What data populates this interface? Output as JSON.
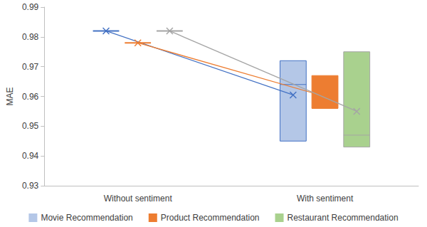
{
  "chart_data": {
    "type": "boxplot",
    "y_label": "MAE",
    "categories": [
      "Without sentiment",
      "With sentiment"
    ],
    "ylim": [
      0.93,
      0.99
    ],
    "yticks": [
      0.93,
      0.94,
      0.95,
      0.96,
      0.97,
      0.98,
      0.99
    ],
    "grid": false,
    "legend": "bottom",
    "marker": "x",
    "series": [
      {
        "name": "Movie Recommendation",
        "color": "#b4c7e7",
        "values": [
          0.982,
          0.9605
        ],
        "box": [
          [
            0.982,
            0.982,
            0.982,
            0.982,
            0.982
          ],
          [
            0.945,
            0.945,
            0.964,
            0.972,
            0.972
          ]
        ]
      },
      {
        "name": "Product Recommendation",
        "color": "#ed7d31",
        "values": [
          0.978,
          0.96
        ],
        "box": [
          [
            0.978,
            0.978,
            0.978,
            0.978,
            0.978
          ],
          [
            0.956,
            0.956,
            0.956,
            0.967,
            0.967
          ]
        ]
      },
      {
        "name": "Restaurant Recommendation",
        "color": "#a9d18e",
        "values": [
          0.982,
          0.955
        ],
        "box": [
          [
            0.982,
            0.982,
            0.982,
            0.982,
            0.982
          ],
          [
            0.943,
            0.943,
            0.947,
            0.975,
            0.975
          ]
        ]
      }
    ]
  }
}
